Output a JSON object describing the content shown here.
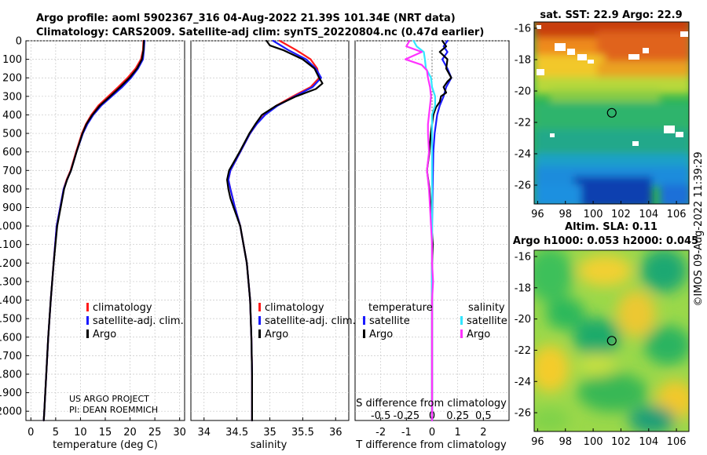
{
  "title": {
    "line1": "Argo profile: aoml 5902367_316 04-Aug-2022 21.39S 101.34E (NRT data)",
    "line2": "Climatology: CARS2009. Satellite-adj clim: synTS_20220804.nc (0.47d earlier)"
  },
  "credit": {
    "line1": "US ARGO PROJECT",
    "line2": "PI: DEAN ROEMMICH"
  },
  "watermark": "©IMOS 09-Aug-2022 11:39:29",
  "colors": {
    "climatology": "#ff1a1a",
    "satellite_adj": "#1a1aff",
    "argo": "#000000",
    "satellite_sal": "#33e6ff",
    "argo_sal": "#ff33ff"
  },
  "legends": {
    "temp": [
      "climatology",
      "satellite-adj. clim.",
      "Argo"
    ],
    "sal": [
      "climatology",
      "satellite-adj. clim.",
      "Argo"
    ],
    "diff_temperature_heading": "temperature",
    "diff_salinity_heading": "salinity",
    "diff_temperature_items": [
      "satellite",
      "Argo"
    ],
    "diff_salinity_items": [
      "satellite",
      "Argo"
    ]
  },
  "maps": {
    "sst": {
      "title": "sat. SST: 22.9 Argo: 22.9"
    },
    "sla": {
      "title_line1": "Altim. SLA: 0.11",
      "title_line2": "Argo h1000: 0.053 h2000: 0.045"
    },
    "lat_ticks": [
      "-16",
      "-18",
      "-20",
      "-22",
      "-24",
      "-26"
    ],
    "lon_ticks": [
      "96",
      "98",
      "100",
      "102",
      "104",
      "106"
    ],
    "marker": {
      "lon": 101.34,
      "lat": -21.39
    }
  },
  "chart_data": [
    {
      "id": "temperature",
      "type": "line",
      "xlabel": "temperature (deg C)",
      "ylabel": "",
      "xlim": [
        -1,
        31
      ],
      "ylim": [
        2050,
        0
      ],
      "xticks": [
        0,
        5,
        10,
        15,
        20,
        25,
        30
      ],
      "yticks": [
        0,
        100,
        200,
        300,
        400,
        500,
        600,
        700,
        800,
        900,
        1000,
        1100,
        1200,
        1300,
        1400,
        1500,
        1600,
        1700,
        1800,
        1900,
        2000
      ],
      "series": [
        {
          "name": "climatology",
          "depth": [
            0,
            50,
            100,
            150,
            200,
            250,
            300,
            350,
            400,
            450,
            500,
            600,
            700,
            750,
            800,
            900,
            1000,
            1200,
            1400,
            1600,
            1800,
            2000,
            2050
          ],
          "x": [
            22.7,
            22.6,
            22.2,
            21.1,
            19.5,
            17.6,
            15.6,
            13.6,
            12.2,
            11.1,
            10.3,
            9.1,
            8.0,
            7.2,
            6.6,
            5.9,
            5.2,
            4.6,
            4.0,
            3.5,
            3.1,
            2.7,
            2.6
          ]
        },
        {
          "name": "satellite-adj. clim.",
          "depth": [
            0,
            50,
            100,
            150,
            200,
            250,
            300,
            350,
            400,
            450,
            500,
            600,
            700,
            750,
            800,
            900,
            1000,
            1200,
            1400,
            1600,
            1800,
            2000,
            2050
          ],
          "x": [
            22.9,
            22.8,
            22.6,
            21.6,
            20.2,
            18.4,
            16.3,
            14.2,
            12.6,
            11.4,
            10.5,
            9.2,
            8.1,
            7.3,
            6.6,
            5.9,
            5.2,
            4.6,
            4.0,
            3.5,
            3.1,
            2.7,
            2.6
          ]
        },
        {
          "name": "Argo",
          "depth": [
            0,
            50,
            100,
            150,
            200,
            250,
            300,
            350,
            400,
            450,
            500,
            600,
            700,
            750,
            800,
            900,
            1000,
            1200,
            1400,
            1600,
            1800,
            2000,
            2050
          ],
          "x": [
            22.8,
            22.7,
            22.4,
            21.4,
            19.9,
            18.0,
            16.0,
            13.9,
            12.4,
            11.2,
            10.4,
            9.2,
            8.1,
            7.3,
            6.7,
            6.0,
            5.3,
            4.6,
            4.0,
            3.5,
            3.1,
            2.7,
            2.6
          ]
        }
      ]
    },
    {
      "id": "salinity",
      "type": "line",
      "xlabel": "salinity",
      "ylabel": "",
      "xlim": [
        33.8,
        36.2
      ],
      "ylim": [
        2050,
        0
      ],
      "xticks": [
        34,
        34.5,
        35,
        35.5,
        36
      ],
      "series": [
        {
          "name": "climatology",
          "depth": [
            0,
            50,
            100,
            150,
            200,
            250,
            300,
            350,
            400,
            450,
            500,
            600,
            700,
            750,
            800,
            900,
            1000,
            1200,
            1400,
            1600,
            1800,
            2000,
            2050
          ],
          "x": [
            35.15,
            35.4,
            35.62,
            35.72,
            35.75,
            35.62,
            35.35,
            35.1,
            34.92,
            34.8,
            34.7,
            34.55,
            34.4,
            34.37,
            34.4,
            34.47,
            34.55,
            34.65,
            34.7,
            34.72,
            34.73,
            34.73,
            34.73
          ]
        },
        {
          "name": "satellite-adj. clim.",
          "depth": [
            0,
            50,
            100,
            150,
            200,
            250,
            300,
            350,
            400,
            450,
            500,
            600,
            700,
            750,
            800,
            900,
            1000,
            1200,
            1400,
            1600,
            1800,
            2000,
            2050
          ],
          "x": [
            35.05,
            35.28,
            35.55,
            35.7,
            35.78,
            35.65,
            35.38,
            35.12,
            34.93,
            34.8,
            34.7,
            34.55,
            34.4,
            34.37,
            34.4,
            34.47,
            34.55,
            34.65,
            34.7,
            34.72,
            34.73,
            34.73,
            34.73
          ]
        },
        {
          "name": "Argo",
          "depth": [
            0,
            25,
            50,
            100,
            150,
            200,
            230,
            260,
            300,
            350,
            400,
            450,
            500,
            600,
            700,
            750,
            800,
            850,
            900,
            1000,
            1200,
            1400,
            1600,
            1800,
            2000,
            2050
          ],
          "x": [
            34.95,
            35.0,
            35.2,
            35.5,
            35.68,
            35.75,
            35.8,
            35.7,
            35.4,
            35.1,
            34.88,
            34.78,
            34.69,
            34.54,
            34.38,
            34.35,
            34.37,
            34.4,
            34.45,
            34.55,
            34.65,
            34.7,
            34.72,
            34.73,
            34.73,
            34.73
          ]
        }
      ]
    },
    {
      "id": "difference",
      "type": "line",
      "xlabel": "T difference from climatology",
      "xlabel_top": "S difference from climatology",
      "xlim": [
        -3,
        3
      ],
      "ylim": [
        2050,
        0
      ],
      "xticks": [
        -2,
        -1,
        0,
        1,
        2
      ],
      "xtick_labels": [
        "-2",
        "-1",
        "0",
        "1",
        "2"
      ],
      "s_ticks": [
        -0.5,
        -0.25,
        0,
        0.25,
        0.5
      ],
      "s_tick_labels": [
        "-0.5",
        "-0.25",
        "0",
        "0.25",
        "0.5"
      ],
      "s_scale": 4,
      "series": [
        {
          "name": "temperature satellite",
          "quantity": "T",
          "depth": [
            0,
            30,
            60,
            100,
            150,
            200,
            250,
            300,
            350,
            400,
            500,
            600,
            800,
            1000,
            1500,
            2000,
            2050
          ],
          "x": [
            0.6,
            0.45,
            0.6,
            0.4,
            0.6,
            0.75,
            0.55,
            0.45,
            0.3,
            0.2,
            0.1,
            0.05,
            0.02,
            0.0,
            0.0,
            0.0,
            0.0
          ]
        },
        {
          "name": "temperature Argo",
          "quantity": "T",
          "depth": [
            0,
            30,
            60,
            100,
            150,
            200,
            220,
            250,
            280,
            300,
            330,
            360,
            400,
            450,
            500,
            600,
            650,
            700,
            750,
            800,
            900,
            1000,
            1100,
            1200,
            1400,
            1600,
            1800,
            2000,
            2050
          ],
          "x": [
            0.4,
            0.55,
            0.3,
            0.6,
            0.55,
            0.75,
            0.6,
            0.45,
            0.55,
            0.35,
            0.3,
            0.15,
            0.05,
            0.0,
            -0.05,
            -0.1,
            -0.15,
            -0.2,
            -0.15,
            -0.1,
            -0.05,
            -0.02,
            0.03,
            0.0,
            0.0,
            0.0,
            0.0,
            0.0,
            0.0
          ]
        },
        {
          "name": "salinity satellite",
          "quantity": "S",
          "depth": [
            0,
            30,
            60,
            100,
            150,
            200,
            250,
            300,
            350,
            400,
            500,
            600,
            800,
            1000,
            1500,
            2000,
            2050
          ],
          "x": [
            -0.18,
            -0.15,
            -0.08,
            -0.07,
            -0.06,
            -0.01,
            0.0,
            0.03,
            0.03,
            0.0,
            0.0,
            0.0,
            0.0,
            0.0,
            0.0,
            0.0,
            0.0
          ]
        },
        {
          "name": "salinity Argo",
          "quantity": "S",
          "depth": [
            0,
            30,
            60,
            100,
            130,
            160,
            200,
            250,
            300,
            350,
            400,
            450,
            500,
            600,
            700,
            800,
            900,
            1000,
            1100,
            1200,
            1300,
            1400,
            1500,
            1600,
            1800,
            2000,
            2050
          ],
          "x": [
            -0.22,
            -0.25,
            -0.1,
            -0.26,
            -0.1,
            -0.05,
            -0.04,
            -0.02,
            -0.01,
            -0.02,
            -0.03,
            -0.04,
            -0.04,
            -0.03,
            -0.05,
            -0.03,
            -0.02,
            -0.01,
            0.0,
            0.0,
            0.01,
            0.0,
            0.0,
            0.0,
            0.0,
            0.0,
            0.0
          ]
        }
      ]
    }
  ]
}
